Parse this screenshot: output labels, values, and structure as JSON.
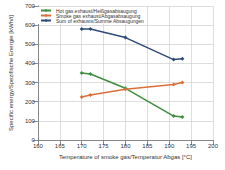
{
  "chart_data": {
    "type": "line",
    "x_label": "Temperature of smoke gas/Temperatur Abgas [°C]",
    "y_label": "Specific energy/Spezifische Energie [kWh/t]",
    "xlim": [
      160,
      200
    ],
    "xticks": [
      160,
      165,
      170,
      175,
      180,
      185,
      190,
      195,
      200
    ],
    "ylim": [
      0,
      700
    ],
    "yticks": [
      0,
      100,
      200,
      300,
      400,
      500,
      600,
      700
    ],
    "grid": true,
    "legend": "top-left",
    "marker": "diamond",
    "series": [
      {
        "name": "Hot gas exhaust/Heißgasabsaugung",
        "color": "#3f8f3f",
        "x": [
          170,
          172,
          180,
          191,
          193
        ],
        "values": [
          350,
          345,
          270,
          125,
          120
        ]
      },
      {
        "name": "Smoke gas exhaust/Abgasabsaugung",
        "color": "#d9703a",
        "x": [
          170,
          172,
          180,
          191,
          193
        ],
        "values": [
          225,
          235,
          265,
          290,
          300
        ]
      },
      {
        "name": "Sum of exhausts/Summe Absaugungen",
        "color": "#2e4a7a",
        "x": [
          170,
          172,
          180,
          191,
          193
        ],
        "values": [
          580,
          580,
          535,
          420,
          425
        ]
      }
    ]
  }
}
